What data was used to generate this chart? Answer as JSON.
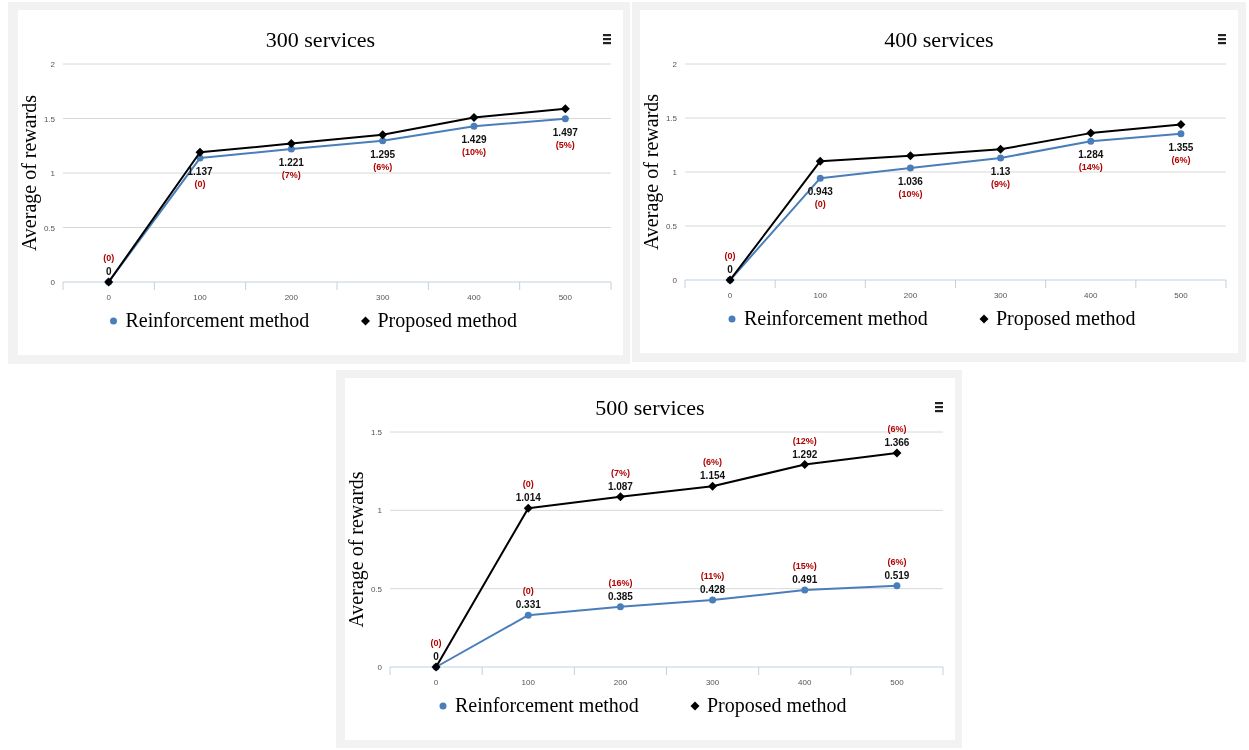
{
  "chart_data": [
    {
      "type": "line",
      "title": "300 services",
      "ylabel": "Average of rewards",
      "categories": [
        "0",
        "100",
        "200",
        "300",
        "400",
        "500"
      ],
      "ylim": [
        0,
        2
      ],
      "yticks": [
        0,
        0.5,
        1,
        1.5,
        2
      ],
      "grid": "y",
      "legend": "bottom",
      "series": [
        {
          "name": "Reinforcement method",
          "color": "#4a7ebb",
          "marker": "circle",
          "values": [
            0,
            1.137,
            1.221,
            1.295,
            1.429,
            1.497
          ],
          "value_labels": [
            "0",
            "1.137",
            "1.221",
            "1.295",
            "1.429",
            "1.497"
          ]
        },
        {
          "name": "Proposed method",
          "color": "#000000",
          "marker": "diamond",
          "values": [
            0,
            1.19,
            1.27,
            1.35,
            1.51,
            1.59
          ]
        }
      ],
      "annotations": [
        {
          "text": "(0)",
          "x": "0",
          "y": 0
        },
        {
          "text": "(0)",
          "x": "100",
          "y": 1.137
        },
        {
          "text": "(7%)",
          "x": "200",
          "y": 1.221
        },
        {
          "text": "(6%)",
          "x": "300",
          "y": 1.295
        },
        {
          "text": "(10%)",
          "x": "400",
          "y": 1.429
        },
        {
          "text": "(5%)",
          "x": "500",
          "y": 1.497
        }
      ]
    },
    {
      "type": "line",
      "title": "400 services",
      "ylabel": "Average of rewards",
      "categories": [
        "0",
        "100",
        "200",
        "300",
        "400",
        "500"
      ],
      "ylim": [
        0,
        2
      ],
      "yticks": [
        0,
        0.5,
        1,
        1.5,
        2
      ],
      "grid": "y",
      "legend": "bottom",
      "series": [
        {
          "name": "Reinforcement method",
          "color": "#4a7ebb",
          "marker": "circle",
          "values": [
            0,
            0.943,
            1.036,
            1.13,
            1.284,
            1.355
          ],
          "value_labels": [
            "0",
            "0.943",
            "1.036",
            "1.13",
            "1.284",
            "1.355"
          ]
        },
        {
          "name": "Proposed method",
          "color": "#000000",
          "marker": "diamond",
          "values": [
            0,
            1.1,
            1.15,
            1.21,
            1.36,
            1.44
          ]
        }
      ],
      "annotations": [
        {
          "text": "(0)",
          "x": "0",
          "y": 0
        },
        {
          "text": "(0)",
          "x": "100",
          "y": 0.943
        },
        {
          "text": "(10%)",
          "x": "200",
          "y": 1.036
        },
        {
          "text": "(9%)",
          "x": "300",
          "y": 1.13
        },
        {
          "text": "(14%)",
          "x": "400",
          "y": 1.284
        },
        {
          "text": "(6%)",
          "x": "500",
          "y": 1.355
        }
      ]
    },
    {
      "type": "line",
      "title": "500 services",
      "ylabel": "Average of rewards",
      "categories": [
        "0",
        "100",
        "200",
        "300",
        "400",
        "500"
      ],
      "ylim": [
        0,
        1.5
      ],
      "yticks": [
        0,
        0.5,
        1,
        1.5
      ],
      "grid": "y",
      "legend": "bottom",
      "series": [
        {
          "name": "Reinforcement method",
          "color": "#4a7ebb",
          "marker": "circle",
          "values": [
            0,
            0.331,
            0.385,
            0.428,
            0.491,
            0.519
          ],
          "value_labels": [
            null,
            "0.331",
            "0.385",
            "0.428",
            "0.491",
            "0.519"
          ]
        },
        {
          "name": "Proposed method",
          "color": "#000000",
          "marker": "diamond",
          "values": [
            0,
            1.014,
            1.087,
            1.154,
            1.292,
            1.366
          ],
          "value_labels": [
            "0",
            "1.014",
            "1.087",
            "1.154",
            "1.292",
            "1.366"
          ]
        }
      ],
      "annotations": [
        {
          "text": "(0)",
          "x": "0",
          "y": 0
        },
        {
          "text": "(0)",
          "x": "100",
          "y": 1.014
        },
        {
          "text": "(7%)",
          "x": "200",
          "y": 1.087
        },
        {
          "text": "(6%)",
          "x": "300",
          "y": 1.154
        },
        {
          "text": "(12%)",
          "x": "400",
          "y": 1.292
        },
        {
          "text": "(6%)",
          "x": "500",
          "y": 1.366
        },
        {
          "text": "(0)",
          "x": "100",
          "y": 0.331
        },
        {
          "text": "(16%)",
          "x": "200",
          "y": 0.385
        },
        {
          "text": "(11%)",
          "x": "300",
          "y": 0.428
        },
        {
          "text": "(15%)",
          "x": "400",
          "y": 0.491
        },
        {
          "text": "(6%)",
          "x": "500",
          "y": 0.519
        }
      ]
    }
  ]
}
